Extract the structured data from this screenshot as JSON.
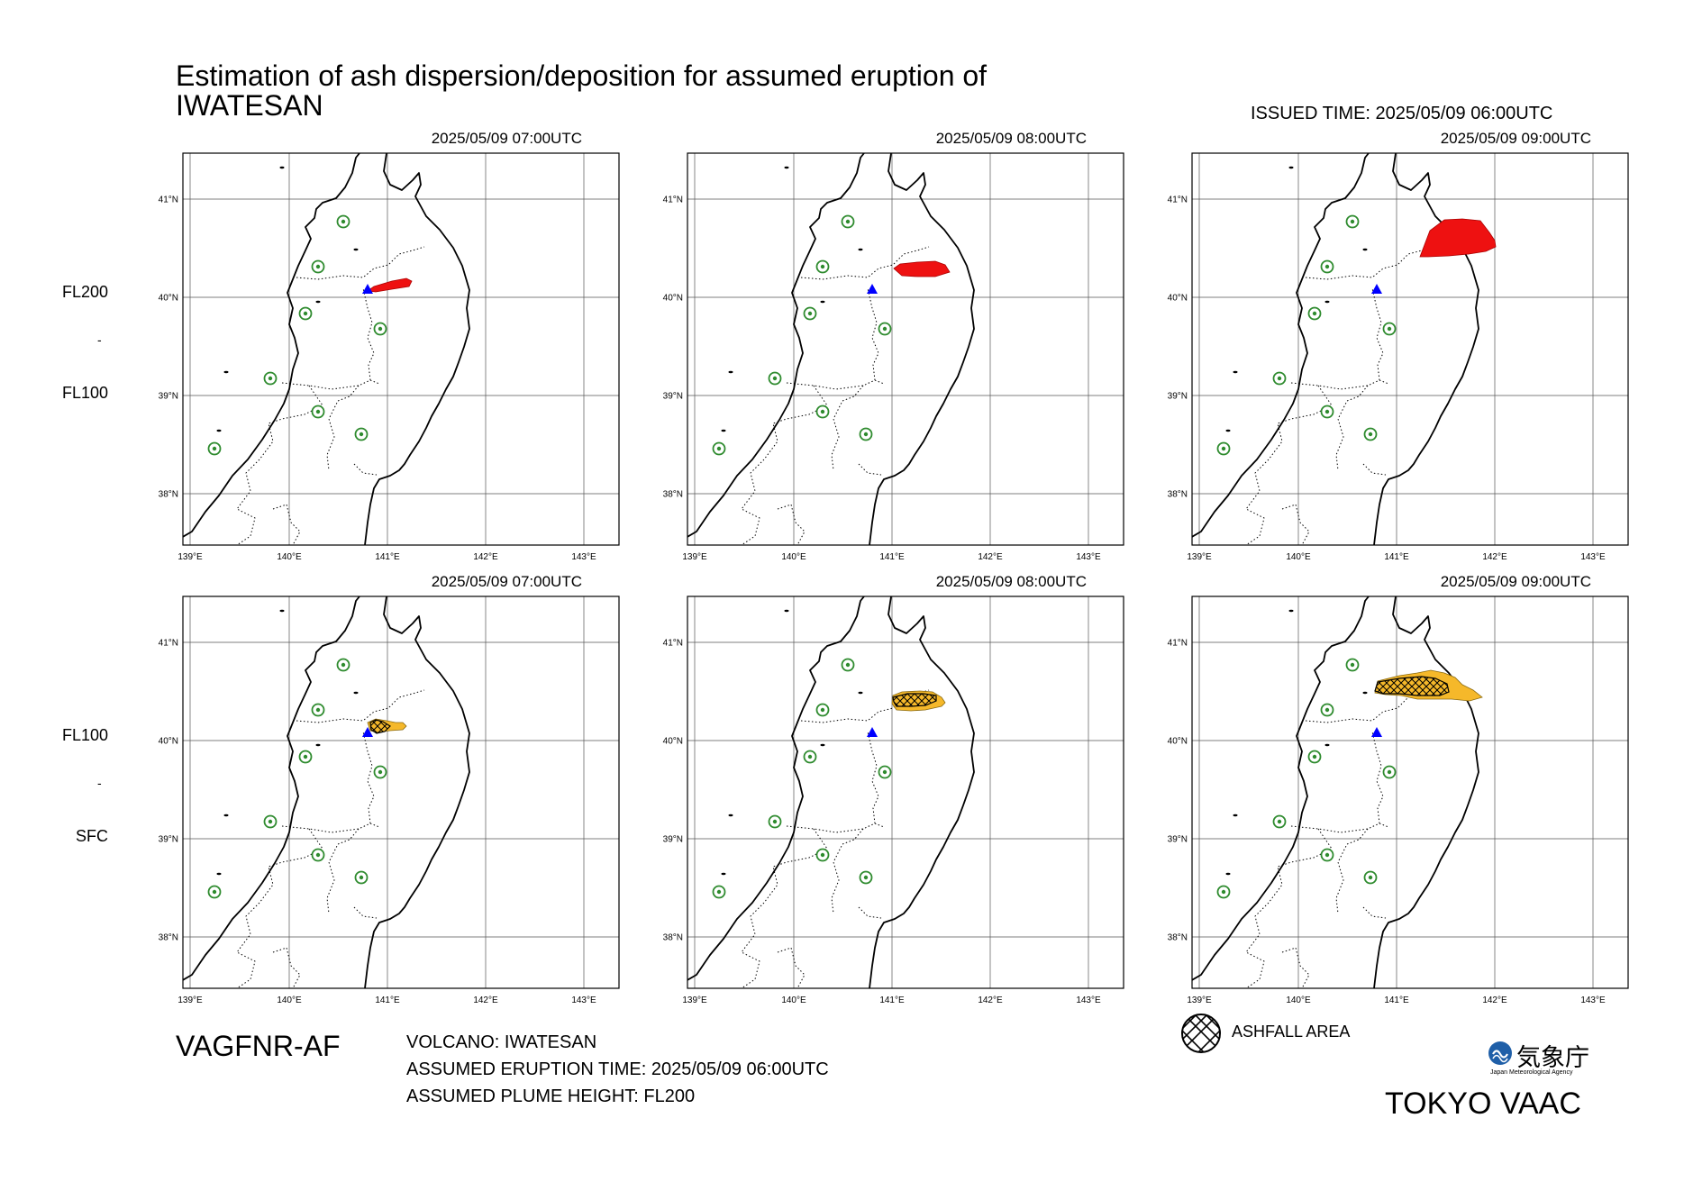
{
  "header": {
    "title_line1": "Estimation of ash dispersion/deposition for assumed eruption of",
    "title_line2": "IWATESAN",
    "issued": "ISSUED TIME: 2025/05/09 06:00UTC"
  },
  "panels": {
    "top": [
      {
        "time": "2025/05/09 07:00UTC"
      },
      {
        "time": "2025/05/09 08:00UTC"
      },
      {
        "time": "2025/05/09 09:00UTC"
      }
    ],
    "bottom": [
      {
        "time": "2025/05/09 07:00UTC"
      },
      {
        "time": "2025/05/09 08:00UTC"
      },
      {
        "time": "2025/05/09 09:00UTC"
      }
    ]
  },
  "levels": {
    "top_upper": "FL200",
    "top_lower": "FL100",
    "bottom_upper": "FL100",
    "bottom_lower": "SFC",
    "separator": "-"
  },
  "axes": {
    "lat_labels": [
      "41°N",
      "40°N",
      "39°N",
      "38°N"
    ],
    "lon_labels": [
      "139°E",
      "140°E",
      "141°E",
      "142°E",
      "143°E"
    ]
  },
  "footer": {
    "product": "VAGFNR-AF",
    "volcano": "VOLCANO: IWATESAN",
    "eruption_time": "ASSUMED ERUPTION TIME: 2025/05/09 06:00UTC",
    "plume_height": "ASSUMED PLUME HEIGHT: FL200",
    "legend_ashfall": "ASHFALL AREA",
    "agency_kanji": "気象庁",
    "agency_en": "Japan Meteorological Agency",
    "vaac": "TOKYO VAAC"
  },
  "colors": {
    "ash_upper": "#ee1111",
    "ash_lower": "#f5b82a",
    "volcano_marker": "#0000ff",
    "station_marker": "#2e8b2e",
    "jma_logo": "#1f5fa8"
  },
  "icons": {
    "volcano": "blue-triangle-icon",
    "station": "green-circle-icon",
    "ashfall": "crosshatch-circle-icon"
  }
}
